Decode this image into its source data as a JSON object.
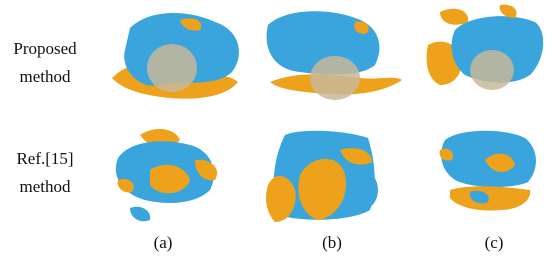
{
  "rows": [
    {
      "label_lines": [
        "Proposed",
        "method"
      ]
    },
    {
      "label_lines": [
        "Ref.[15]",
        "method"
      ]
    }
  ],
  "columns": [
    "(a)",
    "(b)",
    "(c)"
  ]
}
